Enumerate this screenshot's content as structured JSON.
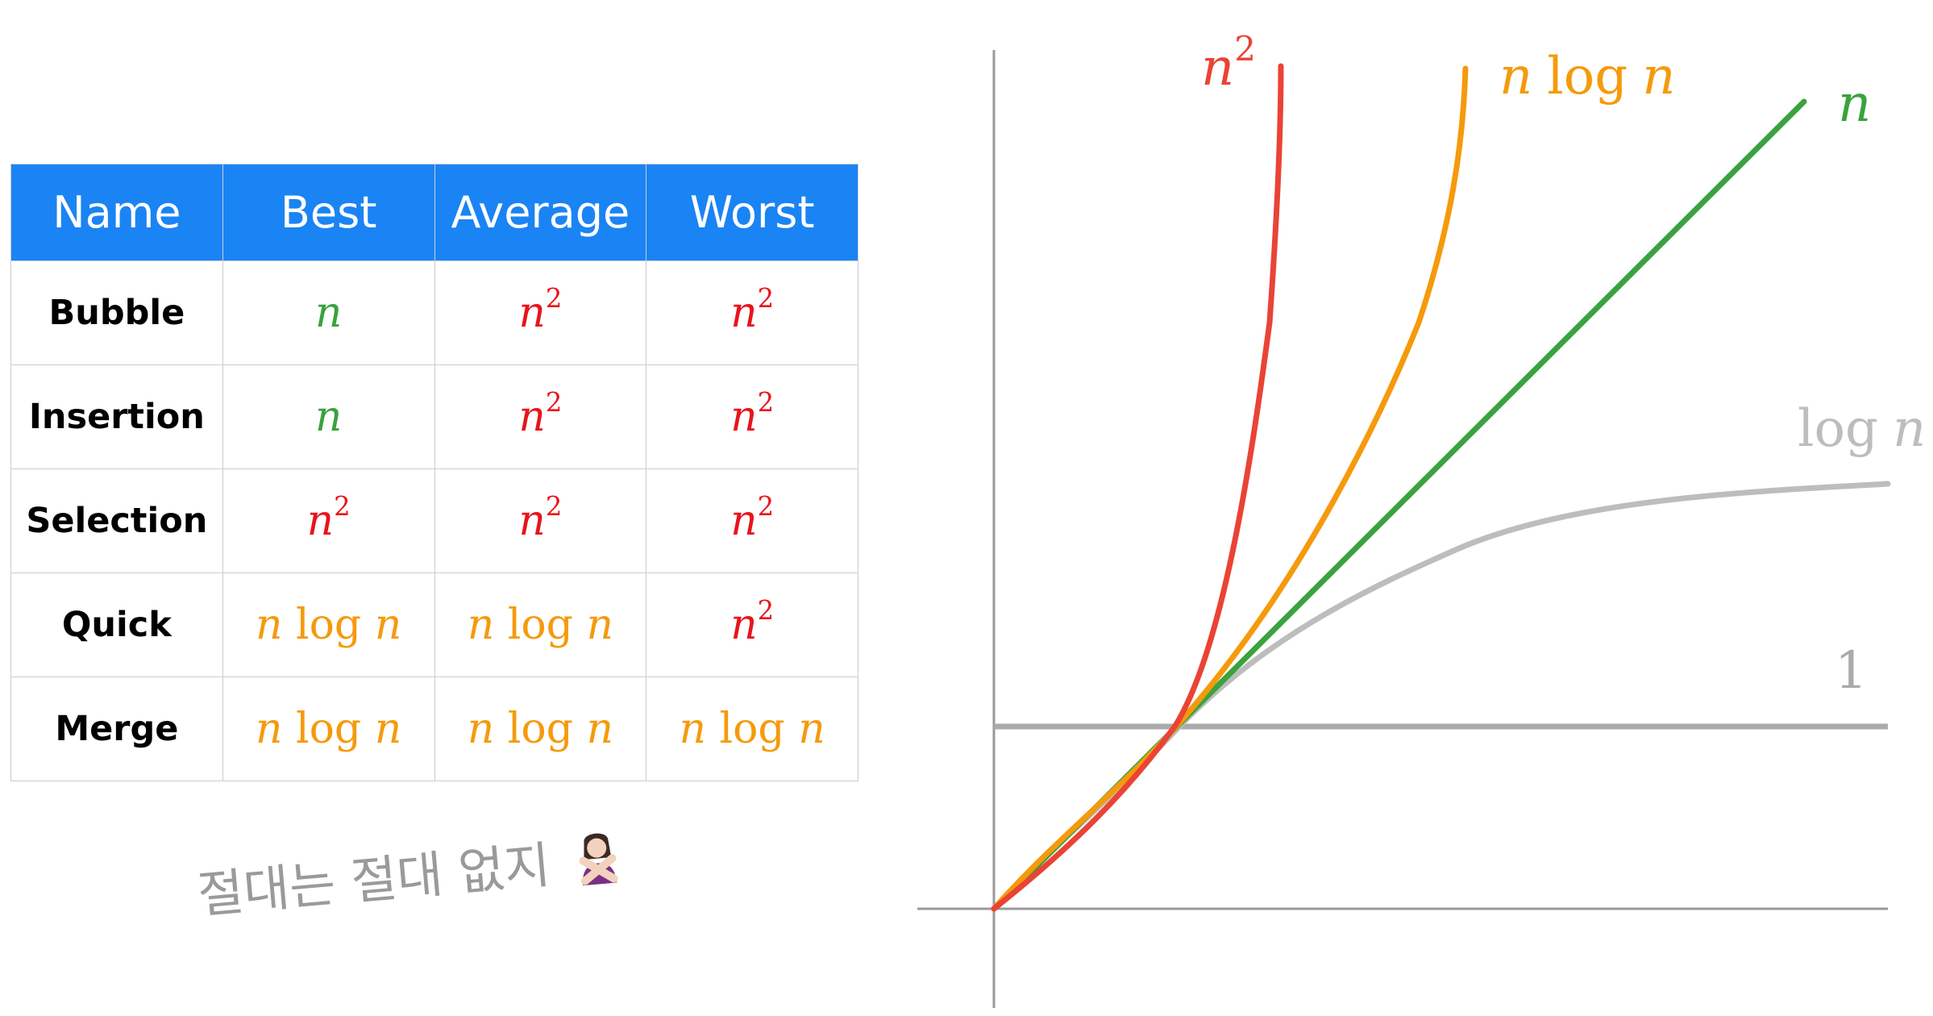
{
  "table": {
    "headers": [
      "Name",
      "Best",
      "Average",
      "Worst"
    ],
    "rows": [
      {
        "name": "Bubble",
        "best": "n",
        "average": "n^2",
        "worst": "n^2"
      },
      {
        "name": "Insertion",
        "best": "n",
        "average": "n^2",
        "worst": "n^2"
      },
      {
        "name": "Selection",
        "best": "n^2",
        "average": "n^2",
        "worst": "n^2"
      },
      {
        "name": "Quick",
        "best": "n log n",
        "average": "n log n",
        "worst": "n^2"
      },
      {
        "name": "Merge",
        "best": "n log n",
        "average": "n log n",
        "worst": "n log n"
      }
    ]
  },
  "colors": {
    "header_bg": "#1a84f4",
    "n": "#3aa23e",
    "n2_table": "#e8141c",
    "n2_curve": "#ea4335",
    "nlogn": "#f59a0c",
    "logn_curve": "#bdbdbd",
    "const_curve": "#ababab",
    "axis": "#999999"
  },
  "caption": {
    "text": "절대는 절대 없지",
    "emoji": "person-gesturing-no"
  },
  "graph": {
    "curves": [
      {
        "id": "n2",
        "var": "n",
        "sup": "2",
        "func": "",
        "color_key": "n2_curve"
      },
      {
        "id": "nlogn",
        "var": "n",
        "sup": "",
        "func": "log",
        "color_key": "nlogn"
      },
      {
        "id": "n",
        "var": "n",
        "sup": "",
        "func": "",
        "color_key": "n"
      },
      {
        "id": "logn",
        "var": "n",
        "sup": "",
        "func": "log",
        "color_key": "logn_curve"
      },
      {
        "id": "const",
        "var": "",
        "sup": "",
        "func": "1",
        "color_key": "const_curve"
      }
    ]
  }
}
